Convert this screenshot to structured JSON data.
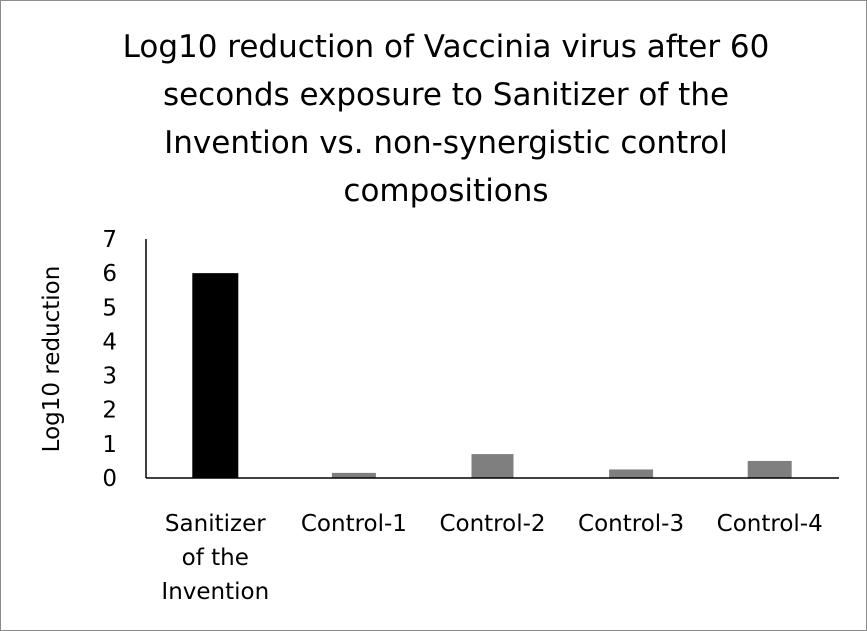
{
  "chart_data": {
    "type": "bar",
    "title_lines": [
      "Log10 reduction of Vaccinia virus after 60",
      "seconds exposure to Sanitizer of the",
      "Invention vs. non-synergistic control",
      "compositions"
    ],
    "ylabel": "Log10 reduction",
    "xlabel": "",
    "ylim": [
      0,
      7
    ],
    "yticks": [
      0,
      1,
      2,
      3,
      4,
      5,
      6,
      7
    ],
    "grid": false,
    "legend": "none",
    "categories": [
      [
        "Sanitizer",
        "of the",
        "Invention"
      ],
      [
        "Control-1"
      ],
      [
        "Control-2"
      ],
      [
        "Control-3"
      ],
      [
        "Control-4"
      ]
    ],
    "values": [
      6.0,
      0.15,
      0.7,
      0.25,
      0.5
    ],
    "bar_colors": [
      "#000000",
      "#7f7f7f",
      "#7f7f7f",
      "#7f7f7f",
      "#7f7f7f"
    ],
    "axis_color": "#000000"
  }
}
